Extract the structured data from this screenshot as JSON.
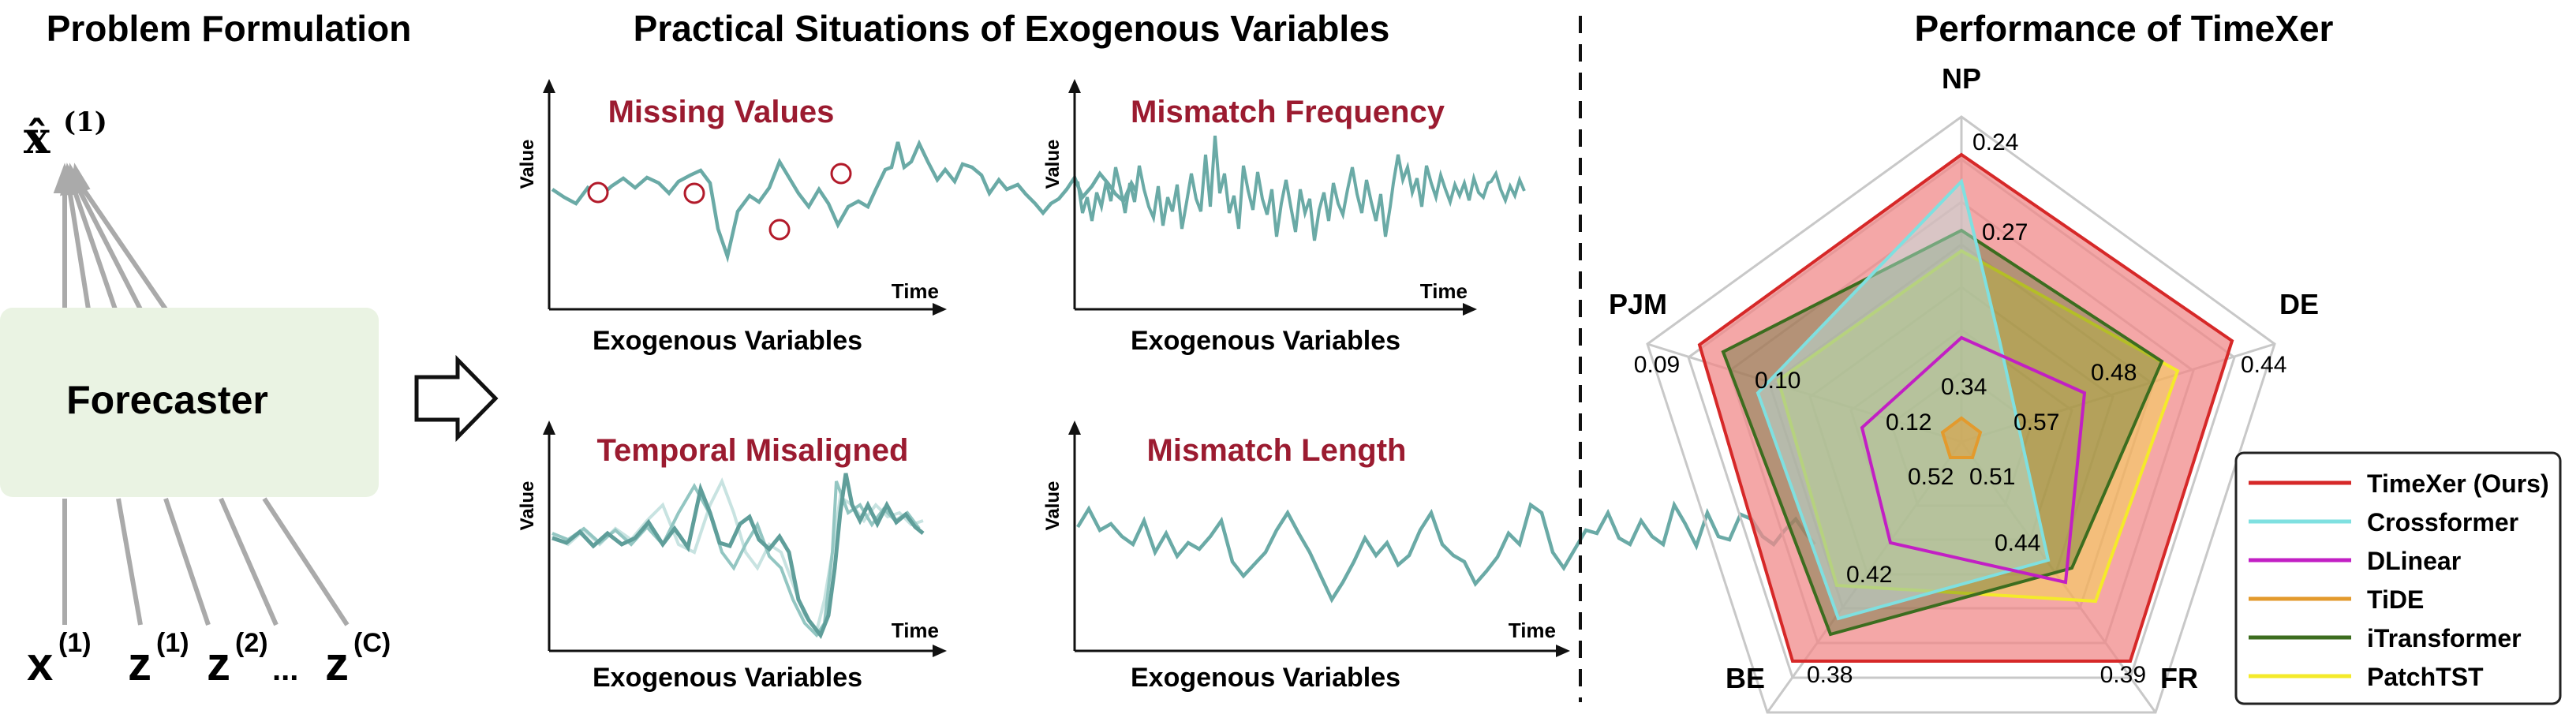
{
  "left": {
    "title": "Problem Formulation",
    "output_label": "x̂",
    "output_sup": "(1)",
    "box_label": "Forecaster",
    "inputs": [
      {
        "base": "x",
        "sup": "(1)"
      },
      {
        "base": "z",
        "sup": "(1)"
      },
      {
        "base": "z",
        "sup": "(2)"
      },
      {
        "base": "...",
        "sup": ""
      },
      {
        "base": "z",
        "sup": "(C)"
      }
    ]
  },
  "middle": {
    "title": "Practical Situations of Exogenous Variables",
    "panels": [
      {
        "title": "Missing Values",
        "ylabel": "Value",
        "xlabel": "Time",
        "caption": "Exogenous Variables"
      },
      {
        "title": "Mismatch Frequency",
        "ylabel": "Value",
        "xlabel": "Time",
        "caption": "Exogenous Variables"
      },
      {
        "title": "Temporal Misaligned",
        "ylabel": "Value",
        "xlabel": "Time",
        "caption": "Exogenous Variables"
      },
      {
        "title": "Mismatch Length",
        "ylabel": "Value",
        "xlabel": "Time",
        "caption": "Exogenous Variables"
      }
    ]
  },
  "right": {
    "title": "Performance of TimeXer",
    "axes": [
      "NP",
      "DE",
      "FR",
      "BE",
      "PJM"
    ],
    "outer_values": [
      "0.24",
      "0.44",
      "0.39",
      "0.38",
      "0.09"
    ],
    "inner_labels": [
      "0.27",
      "0.48",
      "0.44",
      "0.42",
      "0.10",
      "0.34",
      "0.57",
      "0.51",
      "0.52",
      "0.12"
    ],
    "legend": [
      {
        "name": "TimeXer (Ours)",
        "color": "#d62828"
      },
      {
        "name": "Crossformer",
        "color": "#7fe0e0"
      },
      {
        "name": "DLinear",
        "color": "#c21fc4"
      },
      {
        "name": "TiDE",
        "color": "#e39a2d"
      },
      {
        "name": "iTransformer",
        "color": "#3c6d1f"
      },
      {
        "name": "PatchTST",
        "color": "#f4ea2a"
      }
    ]
  }
}
